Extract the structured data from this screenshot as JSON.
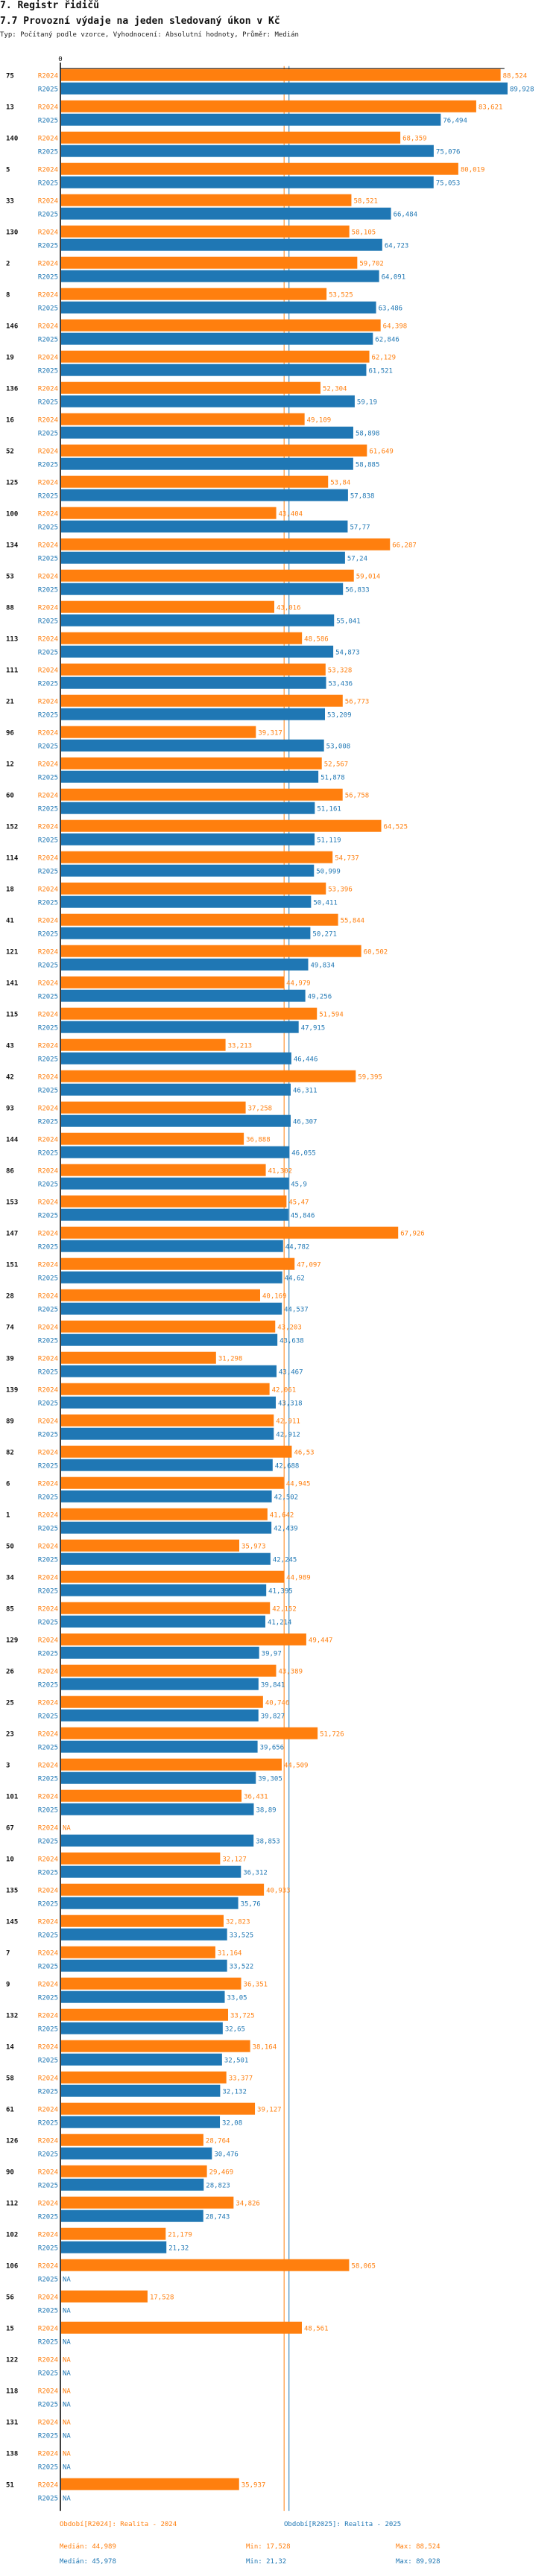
{
  "header": {
    "section_title": "7. Registr řidičů",
    "chart_title": "7.7 Provozní výdaje na jeden sledovaný úkon v Kč",
    "subtitle": "Typ: Počítaný podle vzorce, Vyhodnocení: Absolutní hodnoty, Průměr: Medián"
  },
  "chart_data": {
    "type": "bar",
    "orientation": "horizontal",
    "title": "7.7 Provozní výdaje na jeden sledovaný úkon v Kč",
    "axis_zero_label": "0",
    "xlim": [
      0,
      90.5
    ],
    "grid": false,
    "na_label": "NA",
    "colors": {
      "R2024": "#ff7f0e",
      "R2025": "#1f77b4"
    },
    "series_names": [
      "R2024",
      "R2025"
    ],
    "categories": [
      "75",
      "13",
      "140",
      "5",
      "33",
      "130",
      "2",
      "8",
      "146",
      "19",
      "136",
      "16",
      "52",
      "125",
      "100",
      "134",
      "53",
      "88",
      "113",
      "111",
      "21",
      "96",
      "12",
      "60",
      "152",
      "114",
      "18",
      "41",
      "121",
      "141",
      "115",
      "43",
      "42",
      "93",
      "144",
      "86",
      "153",
      "147",
      "151",
      "28",
      "74",
      "39",
      "139",
      "89",
      "82",
      "6",
      "1",
      "50",
      "34",
      "85",
      "129",
      "26",
      "25",
      "23",
      "3",
      "101",
      "67",
      "10",
      "135",
      "145",
      "7",
      "9",
      "132",
      "14",
      "58",
      "61",
      "126",
      "90",
      "112",
      "102",
      "106",
      "56",
      "15",
      "122",
      "118",
      "131",
      "138",
      "51"
    ],
    "series": [
      {
        "name": "R2024",
        "values": [
          88.524,
          83.621,
          68.359,
          80.019,
          58.521,
          58.105,
          59.702,
          53.525,
          64.398,
          62.129,
          52.304,
          49.109,
          61.649,
          53.84,
          43.404,
          66.287,
          59.014,
          43.016,
          48.586,
          53.328,
          56.773,
          39.317,
          52.567,
          56.758,
          64.525,
          54.737,
          53.396,
          55.844,
          60.502,
          44.979,
          51.594,
          33.213,
          59.395,
          37.258,
          36.888,
          41.302,
          45.47,
          67.926,
          47.097,
          40.169,
          43.203,
          31.298,
          42.061,
          42.911,
          46.53,
          44.945,
          41.642,
          35.973,
          44.989,
          42.152,
          49.447,
          43.389,
          40.746,
          51.726,
          44.509,
          36.431,
          null,
          32.127,
          40.933,
          32.823,
          31.164,
          36.351,
          33.725,
          38.164,
          33.377,
          39.127,
          28.764,
          29.469,
          34.826,
          21.179,
          58.065,
          17.528,
          48.561,
          null,
          null,
          null,
          null,
          35.937
        ],
        "labels": [
          "88,524",
          "83,621",
          "68,359",
          "80,019",
          "58,521",
          "58,105",
          "59,702",
          "53,525",
          "64,398",
          "62,129",
          "52,304",
          "49,109",
          "61,649",
          "53,84",
          "43,404",
          "66,287",
          "59,014",
          "43,016",
          "48,586",
          "53,328",
          "56,773",
          "39,317",
          "52,567",
          "56,758",
          "64,525",
          "54,737",
          "53,396",
          "55,844",
          "60,502",
          "44,979",
          "51,594",
          "33,213",
          "59,395",
          "37,258",
          "36,888",
          "41,302",
          "45,47",
          "67,926",
          "47,097",
          "40,169",
          "43,203",
          "31,298",
          "42,061",
          "42,911",
          "46,53",
          "44,945",
          "41,642",
          "35,973",
          "44,989",
          "42,152",
          "49,447",
          "43,389",
          "40,746",
          "51,726",
          "44,509",
          "36,431",
          "NA",
          "32,127",
          "40,933",
          "32,823",
          "31,164",
          "36,351",
          "33,725",
          "38,164",
          "33,377",
          "39,127",
          "28,764",
          "29,469",
          "34,826",
          "21,179",
          "58,065",
          "17,528",
          "48,561",
          "NA",
          "NA",
          "NA",
          "NA",
          "35,937"
        ],
        "median": 44.989
      },
      {
        "name": "R2025",
        "values": [
          89.928,
          76.494,
          75.076,
          75.053,
          66.484,
          64.723,
          64.091,
          63.486,
          62.846,
          61.521,
          59.19,
          58.898,
          58.885,
          57.838,
          57.77,
          57.24,
          56.833,
          55.041,
          54.873,
          53.436,
          53.209,
          53.008,
          51.878,
          51.161,
          51.119,
          50.999,
          50.411,
          50.271,
          49.834,
          49.256,
          47.915,
          46.446,
          46.311,
          46.307,
          46.055,
          45.9,
          45.846,
          44.782,
          44.62,
          44.537,
          43.638,
          43.467,
          43.318,
          42.912,
          42.688,
          42.502,
          42.439,
          42.245,
          41.395,
          41.214,
          39.97,
          39.841,
          39.827,
          39.656,
          39.305,
          38.89,
          38.853,
          36.312,
          35.76,
          33.525,
          33.522,
          33.05,
          32.65,
          32.501,
          32.132,
          32.08,
          30.476,
          28.823,
          28.743,
          21.32,
          null,
          null,
          null,
          null,
          null,
          null,
          null,
          null
        ],
        "labels": [
          "89,928",
          "76,494",
          "75,076",
          "75,053",
          "66,484",
          "64,723",
          "64,091",
          "63,486",
          "62,846",
          "61,521",
          "59,19",
          "58,898",
          "58,885",
          "57,838",
          "57,77",
          "57,24",
          "56,833",
          "55,041",
          "54,873",
          "53,436",
          "53,209",
          "53,008",
          "51,878",
          "51,161",
          "51,119",
          "50,999",
          "50,411",
          "50,271",
          "49,834",
          "49,256",
          "47,915",
          "46,446",
          "46,311",
          "46,307",
          "46,055",
          "45,9",
          "45,846",
          "44,782",
          "44,62",
          "44,537",
          "43,638",
          "43,467",
          "43,318",
          "42,912",
          "42,688",
          "42,502",
          "42,439",
          "42,245",
          "41,395",
          "41,214",
          "39,97",
          "39,841",
          "39,827",
          "39,656",
          "39,305",
          "38,89",
          "38,853",
          "36,312",
          "35,76",
          "33,525",
          "33,522",
          "33,05",
          "32,65",
          "32,501",
          "32,132",
          "32,08",
          "30,476",
          "28,823",
          "28,743",
          "21,32",
          "NA",
          "NA",
          "NA",
          "NA",
          "NA",
          "NA",
          "NA",
          "NA"
        ],
        "median": 45.978
      }
    ]
  },
  "legend": {
    "r2024": {
      "period": "Období[R2024]: Realita - 2024",
      "median": "Medián: 44,989",
      "min": "Min: 17,528",
      "max": "Max: 88,524"
    },
    "r2025": {
      "period": "Období[R2025]: Realita - 2025",
      "median": "Medián: 45,978",
      "min": "Min: 21,32",
      "max": "Max: 89,928"
    }
  }
}
